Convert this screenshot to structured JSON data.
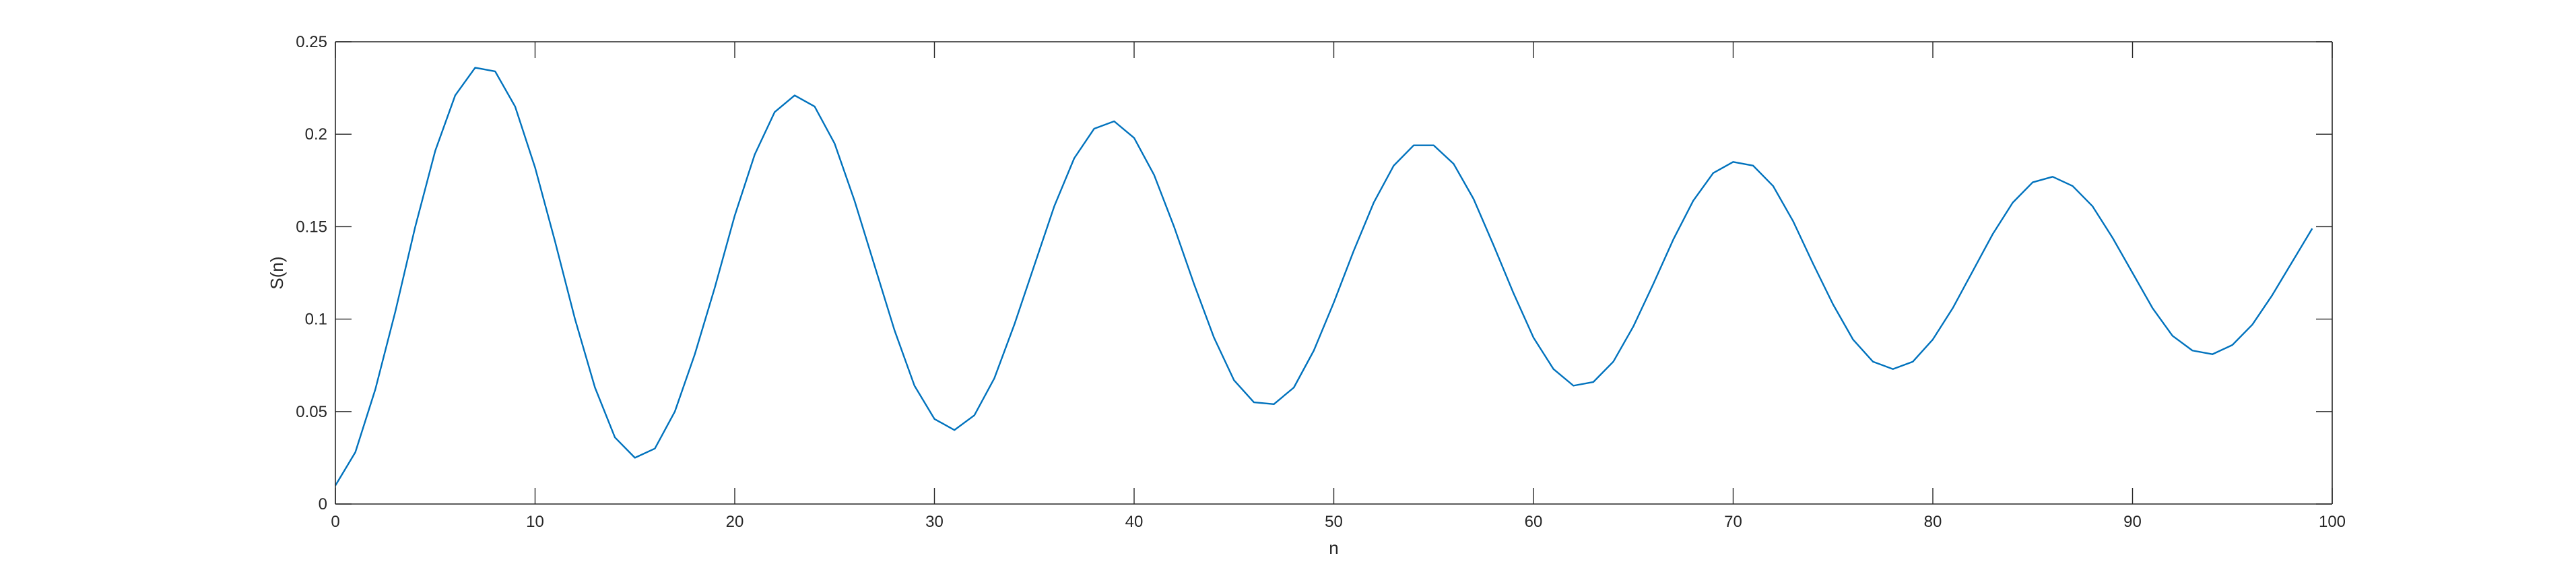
{
  "chart_data": {
    "type": "line",
    "title": "",
    "xlabel": "n",
    "ylabel": "S(n)",
    "xlim": [
      0,
      100
    ],
    "ylim": [
      0,
      0.25
    ],
    "grid": false,
    "box": true,
    "x_ticks": [
      0,
      10,
      20,
      30,
      40,
      50,
      60,
      70,
      80,
      90,
      100
    ],
    "x_tick_labels": [
      "0",
      "10",
      "20",
      "30",
      "40",
      "50",
      "60",
      "70",
      "80",
      "90",
      "100"
    ],
    "y_ticks": [
      0,
      0.05,
      0.1,
      0.15,
      0.2,
      0.25
    ],
    "y_tick_labels": [
      "0",
      "0.05",
      "0.1",
      "0.15",
      "0.2",
      "0.25"
    ],
    "line_color": "#0072BD",
    "axis_color": "#262626",
    "series": [
      {
        "x": [
          0,
          1,
          2,
          3,
          4,
          5,
          6,
          7,
          8,
          9,
          10,
          11,
          12,
          13,
          14,
          15,
          16,
          17,
          18,
          19,
          20,
          21,
          22,
          23,
          24,
          25,
          26,
          27,
          28,
          29,
          30,
          31,
          32,
          33,
          34,
          35,
          36,
          37,
          38,
          39,
          40,
          41,
          42,
          43,
          44,
          45,
          46,
          47,
          48,
          49,
          50,
          51,
          52,
          53,
          54,
          55,
          56,
          57,
          58,
          59,
          60,
          61,
          62,
          63,
          64,
          65,
          66,
          67,
          68,
          69,
          70,
          71,
          72,
          73,
          74,
          75,
          76,
          77,
          78,
          79,
          80,
          81,
          82,
          83,
          84,
          85,
          86,
          87,
          88,
          89,
          90,
          91,
          92,
          93,
          94,
          95,
          96,
          97,
          98,
          99
        ],
        "y": [
          0.01,
          0.028,
          0.062,
          0.104,
          0.15,
          0.191,
          0.221,
          0.236,
          0.234,
          0.215,
          0.182,
          0.142,
          0.1,
          0.063,
          0.036,
          0.025,
          0.03,
          0.05,
          0.081,
          0.117,
          0.156,
          0.189,
          0.212,
          0.221,
          0.215,
          0.195,
          0.164,
          0.129,
          0.094,
          0.064,
          0.046,
          0.04,
          0.048,
          0.068,
          0.097,
          0.129,
          0.161,
          0.187,
          0.203,
          0.207,
          0.198,
          0.178,
          0.15,
          0.119,
          0.09,
          0.067,
          0.055,
          0.054,
          0.063,
          0.083,
          0.109,
          0.137,
          0.163,
          0.183,
          0.194,
          0.194,
          0.184,
          0.165,
          0.14,
          0.114,
          0.09,
          0.073,
          0.064,
          0.066,
          0.077,
          0.096,
          0.119,
          0.143,
          0.164,
          0.179,
          0.185,
          0.183,
          0.172,
          0.153,
          0.13,
          0.108,
          0.089,
          0.077,
          0.073,
          0.077,
          0.089,
          0.106,
          0.126,
          0.146,
          0.163,
          0.174,
          0.177,
          0.172,
          0.161,
          0.144,
          0.125,
          0.106,
          0.091,
          0.083,
          0.081,
          0.086,
          0.097,
          0.113,
          0.131,
          0.149
        ]
      }
    ]
  }
}
